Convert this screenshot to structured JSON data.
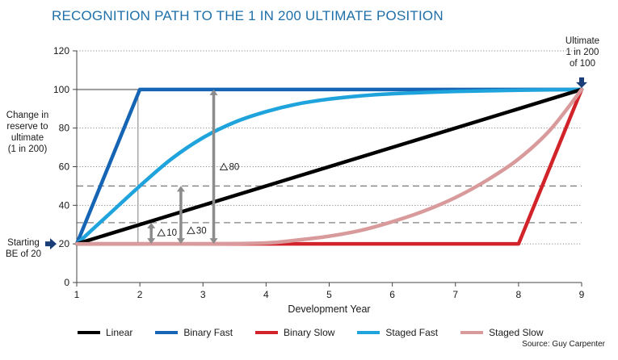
{
  "title": "RECOGNITION PATH TO THE 1 IN 200 ULTIMATE POSITION",
  "source": "Source: Guy Carpenter",
  "chart_data": {
    "type": "line",
    "title": "RECOGNITION PATH TO THE 1 IN 200 ULTIMATE POSITION",
    "xlabel": "Development Year",
    "ylabel": "Change in reserve to ultimate (1 in 200)",
    "xlim": [
      1,
      9
    ],
    "ylim": [
      0,
      120
    ],
    "xticks": [
      "1",
      "2",
      "3",
      "4",
      "5",
      "6",
      "7",
      "8",
      "9"
    ],
    "yticks": [
      "0",
      "20",
      "40",
      "60",
      "80",
      "100",
      "120"
    ],
    "grid": "horizontal dotted",
    "legend_position": "bottom",
    "series": [
      {
        "name": "Linear",
        "color": "#000000",
        "x": [
          1,
          9
        ],
        "y": [
          20,
          100
        ]
      },
      {
        "name": "Binary Fast",
        "color": "#1565b4",
        "x": [
          1,
          2,
          9
        ],
        "y": [
          20,
          100,
          100
        ]
      },
      {
        "name": "Binary Slow",
        "color": "#d2232a",
        "x": [
          1,
          8,
          9
        ],
        "y": [
          20,
          20,
          100
        ]
      },
      {
        "name": "Staged Fast",
        "color": "#1fa3dc",
        "x": [
          1,
          1.5,
          2,
          2.5,
          3,
          3.5,
          4,
          4.5,
          5,
          5.5,
          6,
          7,
          8,
          9
        ],
        "y": [
          20,
          35,
          50,
          64,
          75,
          83,
          88.5,
          92.5,
          95,
          96.7,
          97.8,
          99,
          99.6,
          100
        ]
      },
      {
        "name": "Staged Slow",
        "color": "#d99a9c",
        "x": [
          1,
          2,
          3,
          4,
          4.5,
          5,
          5.5,
          6,
          6.5,
          7,
          7.5,
          8,
          8.5,
          9
        ],
        "y": [
          20,
          20,
          20,
          20.5,
          22,
          24,
          27,
          31.5,
          37,
          44,
          53,
          64,
          79,
          100
        ]
      }
    ],
    "annotations": {
      "ylabel_lines": [
        "Change in",
        "reserve to",
        "ultimate",
        "(1 in 200)"
      ],
      "start_lines": [
        "Starting",
        "BE of 20"
      ],
      "ultimate_lines": [
        "Ultimate",
        "1 in 200",
        "of 100"
      ],
      "deltas": [
        {
          "label": "10",
          "x": 2.18,
          "from": 20,
          "to": 31
        },
        {
          "label": "30",
          "x": 2.65,
          "from": 20,
          "to": 50
        },
        {
          "label": "80",
          "x": 3.17,
          "from": 20,
          "to": 100
        }
      ],
      "reference_lines": [
        {
          "y": 100,
          "from_x": 1,
          "to_x": 2,
          "style": "solid-gray"
        },
        {
          "y": 50,
          "from_x": 1,
          "to_x": 9,
          "style": "dashed"
        },
        {
          "y": 31,
          "from_x": 1,
          "to_x": 9,
          "style": "dashed"
        }
      ]
    }
  }
}
